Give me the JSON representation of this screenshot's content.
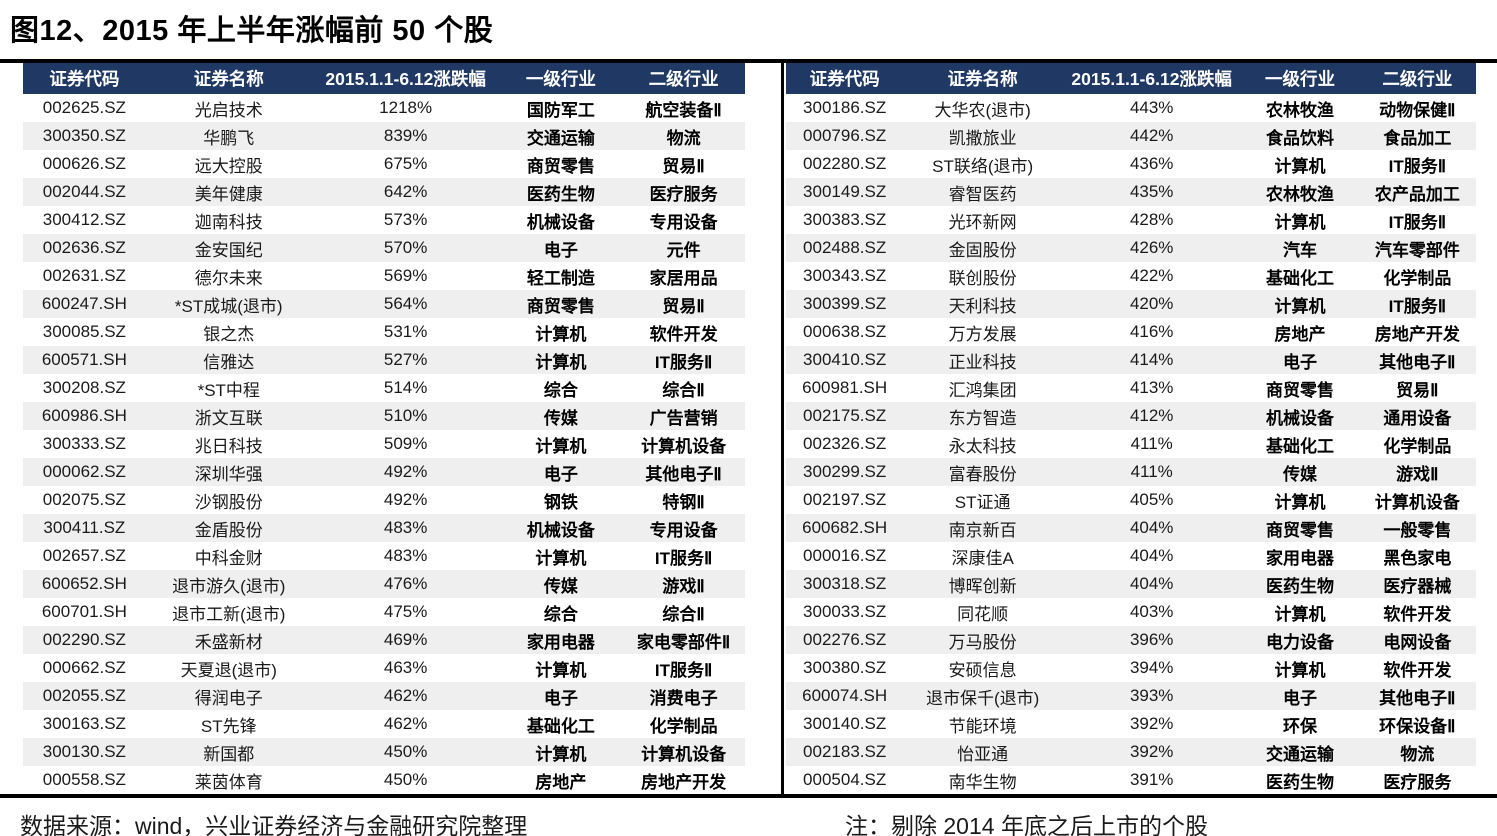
{
  "title": "图12、2015 年上半年涨幅前 50 个股",
  "columns": [
    "证券代码",
    "证券名称",
    "2015.1.1-6.12涨跌幅",
    "一级行业",
    "二级行业"
  ],
  "tables": {
    "left": {
      "rows": [
        [
          "002625.SZ",
          "光启技术",
          "1218%",
          "国防军工",
          "航空装备Ⅱ"
        ],
        [
          "300350.SZ",
          "华鹏飞",
          "839%",
          "交通运输",
          "物流"
        ],
        [
          "000626.SZ",
          "远大控股",
          "675%",
          "商贸零售",
          "贸易Ⅱ"
        ],
        [
          "002044.SZ",
          "美年健康",
          "642%",
          "医药生物",
          "医疗服务"
        ],
        [
          "300412.SZ",
          "迦南科技",
          "573%",
          "机械设备",
          "专用设备"
        ],
        [
          "002636.SZ",
          "金安国纪",
          "570%",
          "电子",
          "元件"
        ],
        [
          "002631.SZ",
          "德尔未来",
          "569%",
          "轻工制造",
          "家居用品"
        ],
        [
          "600247.SH",
          "*ST成城(退市)",
          "564%",
          "商贸零售",
          "贸易Ⅱ"
        ],
        [
          "300085.SZ",
          "银之杰",
          "531%",
          "计算机",
          "软件开发"
        ],
        [
          "600571.SH",
          "信雅达",
          "527%",
          "计算机",
          "IT服务Ⅱ"
        ],
        [
          "300208.SZ",
          "*ST中程",
          "514%",
          "综合",
          "综合Ⅱ"
        ],
        [
          "600986.SH",
          "浙文互联",
          "510%",
          "传媒",
          "广告营销"
        ],
        [
          "300333.SZ",
          "兆日科技",
          "509%",
          "计算机",
          "计算机设备"
        ],
        [
          "000062.SZ",
          "深圳华强",
          "492%",
          "电子",
          "其他电子Ⅱ"
        ],
        [
          "002075.SZ",
          "沙钢股份",
          "492%",
          "钢铁",
          "特钢Ⅱ"
        ],
        [
          "300411.SZ",
          "金盾股份",
          "483%",
          "机械设备",
          "专用设备"
        ],
        [
          "002657.SZ",
          "中科金财",
          "483%",
          "计算机",
          "IT服务Ⅱ"
        ],
        [
          "600652.SH",
          "退市游久(退市)",
          "476%",
          "传媒",
          "游戏Ⅱ"
        ],
        [
          "600701.SH",
          "退市工新(退市)",
          "475%",
          "综合",
          "综合Ⅱ"
        ],
        [
          "002290.SZ",
          "禾盛新材",
          "469%",
          "家用电器",
          "家电零部件Ⅱ"
        ],
        [
          "000662.SZ",
          "天夏退(退市)",
          "463%",
          "计算机",
          "IT服务Ⅱ"
        ],
        [
          "002055.SZ",
          "得润电子",
          "462%",
          "电子",
          "消费电子"
        ],
        [
          "300163.SZ",
          "ST先锋",
          "462%",
          "基础化工",
          "化学制品"
        ],
        [
          "300130.SZ",
          "新国都",
          "450%",
          "计算机",
          "计算机设备"
        ],
        [
          "000558.SZ",
          "莱茵体育",
          "450%",
          "房地产",
          "房地产开发"
        ]
      ]
    },
    "right": {
      "rows": [
        [
          "300186.SZ",
          "大华农(退市)",
          "443%",
          "农林牧渔",
          "动物保健Ⅱ"
        ],
        [
          "000796.SZ",
          "凯撒旅业",
          "442%",
          "食品饮料",
          "食品加工"
        ],
        [
          "002280.SZ",
          "ST联络(退市)",
          "436%",
          "计算机",
          "IT服务Ⅱ"
        ],
        [
          "300149.SZ",
          "睿智医药",
          "435%",
          "农林牧渔",
          "农产品加工"
        ],
        [
          "300383.SZ",
          "光环新网",
          "428%",
          "计算机",
          "IT服务Ⅱ"
        ],
        [
          "002488.SZ",
          "金固股份",
          "426%",
          "汽车",
          "汽车零部件"
        ],
        [
          "300343.SZ",
          "联创股份",
          "422%",
          "基础化工",
          "化学制品"
        ],
        [
          "300399.SZ",
          "天利科技",
          "420%",
          "计算机",
          "IT服务Ⅱ"
        ],
        [
          "000638.SZ",
          "万方发展",
          "416%",
          "房地产",
          "房地产开发"
        ],
        [
          "300410.SZ",
          "正业科技",
          "414%",
          "电子",
          "其他电子Ⅱ"
        ],
        [
          "600981.SH",
          "汇鸿集团",
          "413%",
          "商贸零售",
          "贸易Ⅱ"
        ],
        [
          "002175.SZ",
          "东方智造",
          "412%",
          "机械设备",
          "通用设备"
        ],
        [
          "002326.SZ",
          "永太科技",
          "411%",
          "基础化工",
          "化学制品"
        ],
        [
          "300299.SZ",
          "富春股份",
          "411%",
          "传媒",
          "游戏Ⅱ"
        ],
        [
          "002197.SZ",
          "ST证通",
          "405%",
          "计算机",
          "计算机设备"
        ],
        [
          "600682.SH",
          "南京新百",
          "404%",
          "商贸零售",
          "一般零售"
        ],
        [
          "000016.SZ",
          "深康佳A",
          "404%",
          "家用电器",
          "黑色家电"
        ],
        [
          "300318.SZ",
          "博晖创新",
          "404%",
          "医药生物",
          "医疗器械"
        ],
        [
          "300033.SZ",
          "同花顺",
          "403%",
          "计算机",
          "软件开发"
        ],
        [
          "002276.SZ",
          "万马股份",
          "396%",
          "电力设备",
          "电网设备"
        ],
        [
          "300380.SZ",
          "安硕信息",
          "394%",
          "计算机",
          "软件开发"
        ],
        [
          "600074.SH",
          "退市保千(退市)",
          "393%",
          "电子",
          "其他电子Ⅱ"
        ],
        [
          "300140.SZ",
          "节能环境",
          "392%",
          "环保",
          "环保设备Ⅱ"
        ],
        [
          "002183.SZ",
          "怡亚通",
          "392%",
          "交通运输",
          "物流"
        ],
        [
          "000504.SZ",
          "南华生物",
          "391%",
          "医药生物",
          "医疗服务"
        ]
      ]
    }
  },
  "footer": {
    "source": "数据来源：wind，兴业证券经济与金融研究院整理",
    "note": "注：剔除 2014 年底之后上市的个股"
  },
  "colors": {
    "header_bg": "#1F3864",
    "header_text": "#FFFFFF",
    "alt_row_bg": "#EFEFEF",
    "rule": "#000000"
  }
}
